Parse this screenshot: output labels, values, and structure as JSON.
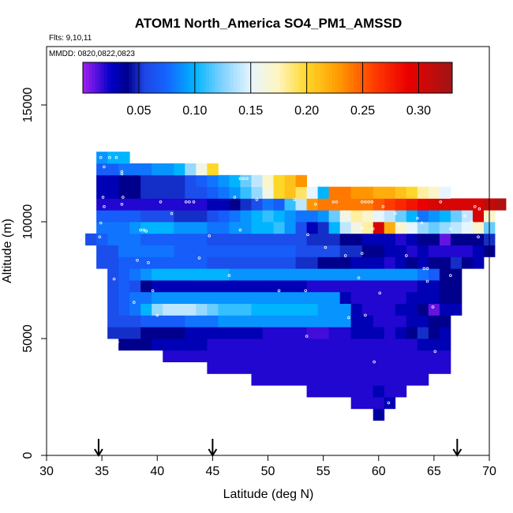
{
  "chart_data": {
    "type": "heatmap",
    "title": "ATOM1 North_America SO4_PM1_AMSSD",
    "flights_label": "Flts: 9,10,11",
    "dates_label": "MMDD: 0820,0822,0823",
    "xlabel": "Latitude (deg N)",
    "ylabel": "Altitude (m)",
    "xlim": [
      30,
      70
    ],
    "ylim": [
      0,
      17500
    ],
    "x_ticks": [
      30,
      35,
      40,
      45,
      50,
      55,
      60,
      65,
      70
    ],
    "y_ticks": [
      0,
      5000,
      10000,
      15000
    ],
    "colorbar": {
      "range": [
        0,
        0.33
      ],
      "ticks": [
        0.05,
        0.1,
        0.15,
        0.2,
        0.25,
        0.3
      ],
      "tick_labels": [
        "0.05",
        "0.10",
        "0.15",
        "0.20",
        "0.25",
        "0.30"
      ]
    },
    "grid": {
      "lat_step": 1,
      "alt_step": 500
    },
    "arrows_latitude": [
      34.7,
      45.0,
      67.1
    ],
    "rows": [
      {
        "alt": 1750,
        "lat0": 59.5,
        "values": [
          0.035
        ]
      },
      {
        "alt": 2250,
        "lat0": 57.5,
        "values": [
          0.02,
          0.02,
          0.02,
          0.03
        ]
      },
      {
        "alt": 2750,
        "lat0": 53.5,
        "values": [
          0.02,
          0.02,
          0.02,
          0.02,
          0.02,
          0.02,
          0.03,
          0.02,
          0.02
        ]
      },
      {
        "alt": 3250,
        "lat0": 48.5,
        "values": [
          0.02,
          0.02,
          0.02,
          0.02,
          0.02,
          0.02,
          0.02,
          0.02,
          0.02,
          0.02,
          0.02,
          0.02,
          0.02,
          0.02,
          0.02,
          0.02
        ]
      },
      {
        "alt": 3750,
        "lat0": 44.5,
        "values": [
          0.02,
          0.02,
          0.02,
          0.02,
          0.02,
          0.02,
          0.02,
          0.02,
          0.02,
          0.02,
          0.02,
          0.02,
          0.02,
          0.02,
          0.02,
          0.02,
          0.02,
          0.02,
          0.02,
          0.02,
          0.02,
          0.02
        ]
      },
      {
        "alt": 4250,
        "lat0": 40.5,
        "values": [
          0.02,
          0.02,
          0.02,
          0.02,
          0.02,
          0.02,
          0.02,
          0.02,
          0.02,
          0.02,
          0.02,
          0.02,
          0.02,
          0.02,
          0.02,
          0.02,
          0.02,
          0.02,
          0.02,
          0.02,
          0.02,
          0.02,
          0.02,
          0.02,
          0.02,
          0.02
        ]
      },
      {
        "alt": 4750,
        "lat0": 36.5,
        "values": [
          0.04,
          0.04,
          0.04,
          0.03,
          0.03,
          0.03,
          0.03,
          0.03,
          0.02,
          0.02,
          0.02,
          0.02,
          0.02,
          0.02,
          0.02,
          0.02,
          0.02,
          0.02,
          0.02,
          0.02,
          0.02,
          0.02,
          0.02,
          0.02,
          0.02,
          0.02,
          0.02,
          0.03,
          0.03,
          0.03
        ]
      },
      {
        "alt": 5250,
        "lat0": 35.5,
        "values": [
          0.05,
          0.05,
          0.05,
          0.04,
          0.04,
          0.04,
          0.04,
          0.03,
          0.03,
          0.03,
          0.03,
          0.03,
          0.03,
          0.03,
          0.02,
          0.02,
          0.02,
          0.02,
          0.015,
          0.015,
          0.02,
          0.02,
          0.03,
          0.03,
          0.03,
          0.02,
          0.03,
          0.04,
          0.05,
          0.04,
          0.03
        ]
      },
      {
        "alt": 5750,
        "lat0": 35.5,
        "values": [
          0.06,
          0.06,
          0.06,
          0.07,
          0.07,
          0.07,
          0.07,
          0.08,
          0.08,
          0.08,
          0.09,
          0.09,
          0.09,
          0.09,
          0.09,
          0.09,
          0.09,
          0.09,
          0.09,
          0.09,
          0.09,
          0.09,
          0.03,
          0.03,
          0.02,
          0.02,
          0.02,
          0.03,
          0.03,
          0.04,
          0.04
        ]
      },
      {
        "alt": 6250,
        "lat0": 35.5,
        "values": [
          0.06,
          0.07,
          0.08,
          0.1,
          0.13,
          0.14,
          0.14,
          0.14,
          0.13,
          0.12,
          0.11,
          0.11,
          0.11,
          0.1,
          0.1,
          0.1,
          0.1,
          0.1,
          0.1,
          0.09,
          0.09,
          0.09,
          0.03,
          0.02,
          0.02,
          0.02,
          0.03,
          0.03,
          0.04,
          0.01,
          0.03,
          0.03
        ]
      },
      {
        "alt": 6750,
        "lat0": 35.5,
        "values": [
          0.06,
          0.07,
          0.08,
          0.08,
          0.09,
          0.09,
          0.09,
          0.09,
          0.09,
          0.09,
          0.09,
          0.09,
          0.09,
          0.09,
          0.09,
          0.09,
          0.09,
          0.09,
          0.09,
          0.09,
          0.09,
          0.03,
          0.02,
          0.02,
          0.02,
          0.02,
          0.02,
          0.03,
          0.03,
          0.03,
          0.04,
          0.04
        ]
      },
      {
        "alt": 7250,
        "lat0": 35.5,
        "values": [
          0.06,
          0.07,
          0.06,
          0.04,
          0.03,
          0.03,
          0.03,
          0.03,
          0.03,
          0.03,
          0.03,
          0.03,
          0.03,
          0.03,
          0.03,
          0.03,
          0.03,
          0.03,
          0.02,
          0.02,
          0.02,
          0.02,
          0.02,
          0.02,
          0.02,
          0.02,
          0.02,
          0.02,
          0.03,
          0.03,
          0.04,
          0.04
        ]
      },
      {
        "alt": 7750,
        "lat0": 35.5,
        "values": [
          0.06,
          0.07,
          0.08,
          0.09,
          0.1,
          0.1,
          0.1,
          0.1,
          0.1,
          0.1,
          0.1,
          0.09,
          0.09,
          0.09,
          0.09,
          0.09,
          0.09,
          0.09,
          0.09,
          0.09,
          0.09,
          0.09,
          0.09,
          0.09,
          0.09,
          0.09,
          0.09,
          0.09,
          0.08,
          0.07,
          0.04,
          0.04
        ]
      },
      {
        "alt": 8250,
        "lat0": 34.5,
        "values": [
          0.06,
          0.06,
          0.07,
          0.07,
          0.07,
          0.07,
          0.07,
          0.07,
          0.07,
          0.07,
          0.06,
          0.06,
          0.06,
          0.06,
          0.06,
          0.06,
          0.06,
          0.06,
          0.05,
          0.05,
          0.04,
          0.04,
          0.04,
          0.03,
          0.03,
          0.03,
          0.02,
          0.03,
          0.04,
          0.03,
          0.04,
          0.04,
          0.05,
          0.04,
          0.03
        ]
      },
      {
        "alt": 8750,
        "lat0": 34.5,
        "values": [
          0.06,
          0.06,
          0.08,
          0.08,
          0.08,
          0.08,
          0.08,
          0.07,
          0.07,
          0.07,
          0.07,
          0.07,
          0.07,
          0.07,
          0.07,
          0.07,
          0.07,
          0.07,
          0.06,
          0.06,
          0.06,
          0.06,
          0.05,
          0.05,
          0.04,
          0.04,
          0.03,
          0.03,
          0.02,
          0.03,
          0.02,
          0.02,
          0.02,
          0.02,
          0.03,
          0.04
        ]
      },
      {
        "alt": 9250,
        "lat0": 33.5,
        "values": [
          0.06,
          0.07,
          0.08,
          0.08,
          0.08,
          0.07,
          0.07,
          0.07,
          0.07,
          0.07,
          0.07,
          0.06,
          0.06,
          0.06,
          0.06,
          0.06,
          0.06,
          0.06,
          0.06,
          0.06,
          0.05,
          0.05,
          0.05,
          0.04,
          0.04,
          0.03,
          0.03,
          0.03,
          0.02,
          0.03,
          0.04,
          0.04,
          0.01,
          0.04,
          0.04,
          0.04,
          0.05
        ]
      },
      {
        "alt": 9750,
        "lat0": 34.5,
        "values": [
          0.08,
          0.08,
          0.08,
          0.09,
          0.1,
          0.1,
          0.1,
          0.09,
          0.09,
          0.09,
          0.08,
          0.08,
          0.09,
          0.09,
          0.1,
          0.1,
          0.11,
          0.09,
          0.06,
          0.03,
          0.05,
          0.1,
          0.14,
          0.16,
          0.18,
          0.3,
          0.22,
          0.17,
          0.15,
          0.13,
          0.12,
          0.13,
          0.14,
          0.15,
          0.17,
          0.12
        ]
      },
      {
        "alt": 10250,
        "lat0": 34.5,
        "values": [
          0.07,
          0.07,
          0.07,
          0.07,
          0.06,
          0.06,
          0.06,
          0.05,
          0.05,
          0.05,
          0.06,
          0.07,
          0.08,
          0.09,
          0.1,
          0.11,
          0.1,
          0.09,
          0.08,
          0.08,
          0.09,
          0.12,
          0.16,
          0.18,
          0.17,
          0.15,
          0.14,
          0.12,
          0.1,
          0.08,
          0.09,
          0.1,
          0.12,
          0.14,
          0.3,
          0.17
        ]
      },
      {
        "alt": 10750,
        "lat0": 34.5,
        "values": [
          0.02,
          0.02,
          0.02,
          0.02,
          0.02,
          0.02,
          0.02,
          0.02,
          0.02,
          0.02,
          0.03,
          0.03,
          0.04,
          0.05,
          0.06,
          0.08,
          0.07,
          0.11,
          0.14,
          0.23,
          0.24,
          0.24,
          0.24,
          0.24,
          0.24,
          0.25,
          0.26,
          0.27,
          0.28,
          0.29,
          0.3,
          0.3,
          0.3,
          0.3,
          0.3,
          0.31,
          0.32
        ]
      },
      {
        "alt": 11250,
        "lat0": 34.5,
        "values": [
          0.03,
          0.03,
          0.04,
          0.04,
          0.05,
          0.05,
          0.05,
          0.05,
          0.06,
          0.06,
          0.07,
          0.08,
          0.09,
          0.11,
          0.13,
          0.16,
          0.2,
          0.21,
          0.19,
          0.15,
          0.1,
          0.24,
          0.24,
          0.23,
          0.23,
          0.22,
          0.22,
          0.21,
          0.2,
          0.18,
          0.17,
          0.15
        ]
      },
      {
        "alt": 11750,
        "lat0": 34.5,
        "values": [
          0.03,
          0.03,
          0.04,
          0.04,
          0.05,
          0.05,
          0.05,
          0.05,
          0.06,
          0.07,
          0.08,
          0.09,
          0.1,
          0.12,
          0.14,
          0.17,
          0.2,
          0.21,
          0.23
        ]
      },
      {
        "alt": 12250,
        "lat0": 34.5,
        "values": [
          0.07,
          0.07,
          0.08,
          0.08,
          0.08,
          0.09,
          0.09,
          0.1,
          0.13,
          0.16,
          0.2
        ]
      },
      {
        "alt": 12750,
        "lat0": 34.5,
        "values": [
          0.09,
          0.1,
          0.1
        ]
      }
    ],
    "observations": [
      [
        34.9,
        12750
      ],
      [
        35.7,
        12750
      ],
      [
        36.3,
        12750
      ],
      [
        35.2,
        12350
      ],
      [
        36.8,
        12150
      ],
      [
        36.8,
        12050
      ],
      [
        35.1,
        11050
      ],
      [
        36.9,
        11050
      ],
      [
        35.2,
        10650
      ],
      [
        36.8,
        10750
      ],
      [
        40.3,
        10850
      ],
      [
        42.6,
        10850
      ],
      [
        42.9,
        10850
      ],
      [
        43.3,
        10850
      ],
      [
        47.5,
        11850
      ],
      [
        47.8,
        11850
      ],
      [
        48.1,
        11850
      ],
      [
        47.0,
        11050
      ],
      [
        49.0,
        10950
      ],
      [
        52.4,
        10950
      ],
      [
        53.8,
        11600
      ],
      [
        54.3,
        10750
      ],
      [
        55.9,
        10850
      ],
      [
        56.2,
        10850
      ],
      [
        58.5,
        10850
      ],
      [
        58.8,
        10850
      ],
      [
        59.1,
        10850
      ],
      [
        59.4,
        10850
      ],
      [
        60.4,
        10650
      ],
      [
        61.5,
        10350
      ],
      [
        63.5,
        10150
      ],
      [
        65.6,
        10850
      ],
      [
        68.7,
        10650
      ],
      [
        69.1,
        10550
      ],
      [
        67.8,
        10250
      ],
      [
        41.3,
        10350
      ],
      [
        34.9,
        9950
      ],
      [
        38.5,
        9650
      ],
      [
        38.8,
        9650
      ],
      [
        39.0,
        9600
      ],
      [
        44.7,
        9400
      ],
      [
        47.5,
        9650
      ],
      [
        53.6,
        9450
      ],
      [
        58.5,
        9750
      ],
      [
        59.5,
        9700
      ],
      [
        61.8,
        9900
      ],
      [
        63.9,
        9950
      ],
      [
        66.5,
        9700
      ],
      [
        68.4,
        10000
      ],
      [
        69.0,
        9350
      ],
      [
        34.8,
        9350
      ],
      [
        38.2,
        8350
      ],
      [
        39.2,
        8250
      ],
      [
        43.8,
        8450
      ],
      [
        55.2,
        8900
      ],
      [
        57.0,
        8550
      ],
      [
        58.5,
        8650
      ],
      [
        62.5,
        8550
      ],
      [
        64.1,
        8000
      ],
      [
        64.4,
        8000
      ],
      [
        36.1,
        7550
      ],
      [
        39.6,
        7050
      ],
      [
        46.5,
        7700
      ],
      [
        51.0,
        7050
      ],
      [
        53.4,
        7050
      ],
      [
        58.2,
        7600
      ],
      [
        60.1,
        6950
      ],
      [
        64.4,
        7450
      ],
      [
        66.5,
        7700
      ],
      [
        37.9,
        6550
      ],
      [
        40.0,
        6000
      ],
      [
        57.3,
        5900
      ],
      [
        64.9,
        6350
      ],
      [
        36.4,
        4850
      ],
      [
        53.5,
        5100
      ],
      [
        65.1,
        4450
      ],
      [
        59.6,
        4000
      ],
      [
        60.9,
        2250
      ],
      [
        58.8,
        6000
      ]
    ]
  }
}
